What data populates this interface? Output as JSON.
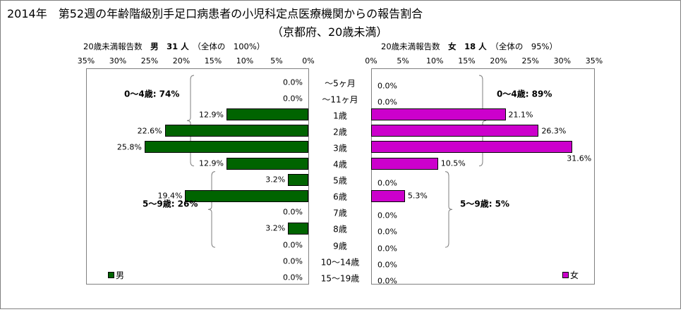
{
  "title": "2014年　第52週の年齢階級別手足口病患者の小児科定点医療機関からの報告割合",
  "subtitle": "（京都府、20歳未満）",
  "colors": {
    "male": "#006400",
    "female": "#CC00CC",
    "axis": "#808080"
  },
  "panes": {
    "male": {
      "header_prefix": "20歳未満報告数",
      "header_bold": "男　31 人",
      "header_suffix": "（全体の　100%）",
      "legend": "男"
    },
    "female": {
      "header_prefix": "20歳未満報告数",
      "header_bold": "女　18 人",
      "header_suffix": "（全体の　95%）",
      "legend": "女"
    }
  },
  "chart_data": [
    {
      "type": "bar",
      "orientation": "horizontal",
      "direction": "reversed",
      "series": [
        {
          "name": "男",
          "values": [
            0.0,
            0.0,
            12.9,
            22.6,
            25.8,
            12.9,
            3.2,
            19.4,
            0.0,
            3.2,
            0.0,
            0.0,
            0.0
          ]
        }
      ],
      "categories": [
        "～5ヶ月",
        "～11ヶ月",
        "1歳",
        "2歳",
        "3歳",
        "4歳",
        "5歳",
        "6歳",
        "7歳",
        "8歳",
        "9歳",
        "10～14歳",
        "15～19歳"
      ],
      "value_labels": [
        "0.0%",
        "0.0%",
        "12.9%",
        "22.6%",
        "25.8%",
        "12.9%",
        "3.2%",
        "19.4%",
        "0.0%",
        "3.2%",
        "0.0%",
        "0.0%",
        "0.0%"
      ],
      "xlim": [
        0,
        35
      ],
      "tick_labels": [
        "0%",
        "5%",
        "10%",
        "15%",
        "20%",
        "25%",
        "30%",
        "35%"
      ],
      "group_labels": [
        "0～4歳: 74%",
        "5～9歳: 26%"
      ],
      "legend": "bottom-left"
    },
    {
      "type": "bar",
      "orientation": "horizontal",
      "series": [
        {
          "name": "女",
          "values": [
            0.0,
            0.0,
            21.1,
            26.3,
            31.6,
            10.5,
            0.0,
            5.3,
            0.0,
            0.0,
            0.0,
            0.0,
            0.0
          ]
        }
      ],
      "categories": [
        "～5ヶ月",
        "～11ヶ月",
        "1歳",
        "2歳",
        "3歳",
        "4歳",
        "5歳",
        "6歳",
        "7歳",
        "8歳",
        "9歳",
        "10～14歳",
        "15～19歳"
      ],
      "value_labels": [
        "0.0%",
        "0.0%",
        "21.1%",
        "26.3%",
        "31.6%",
        "10.5%",
        "0.0%",
        "5.3%",
        "0.0%",
        "0.0%",
        "0.0%",
        "0.0%",
        "0.0%"
      ],
      "xlim": [
        0,
        35
      ],
      "tick_labels": [
        "0%",
        "5%",
        "10%",
        "15%",
        "20%",
        "25%",
        "30%",
        "35%"
      ],
      "group_labels": [
        "0～4歳: 89%",
        "5～9歳: 5%"
      ],
      "legend": "bottom-right"
    }
  ]
}
